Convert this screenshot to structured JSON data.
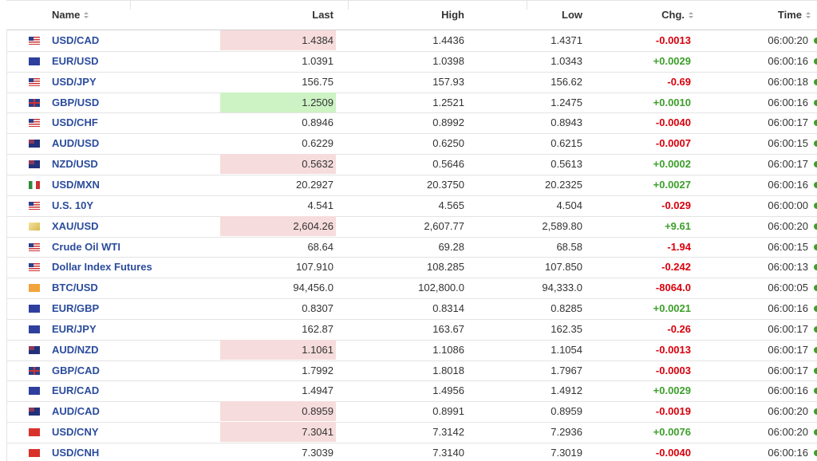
{
  "table": {
    "header": [
      "Name",
      "Last",
      "High",
      "Low",
      "Chg.",
      "Time"
    ],
    "rows": [
      [
        "USD/CAD",
        "1.4384",
        "1.4436",
        "1.4371",
        "-0.0013",
        "06:00:20"
      ],
      [
        "EUR/USD",
        "1.0391",
        "1.0398",
        "1.0343",
        "+0.0029",
        "06:00:16"
      ],
      [
        "USD/JPY",
        "156.75",
        "157.93",
        "156.62",
        "-0.69",
        "06:00:18"
      ],
      [
        "GBP/USD",
        "1.2509",
        "1.2521",
        "1.2475",
        "+0.0010",
        "06:00:16"
      ],
      [
        "USD/CHF",
        "0.8946",
        "0.8992",
        "0.8943",
        "-0.0040",
        "06:00:17"
      ],
      [
        "AUD/USD",
        "0.6229",
        "0.6250",
        "0.6215",
        "-0.0007",
        "06:00:15"
      ],
      [
        "NZD/USD",
        "0.5632",
        "0.5646",
        "0.5613",
        "+0.0002",
        "06:00:17"
      ],
      [
        "USD/MXN",
        "20.2927",
        "20.3750",
        "20.2325",
        "+0.0027",
        "06:00:16"
      ],
      [
        "U.S. 10Y",
        "4.541",
        "4.565",
        "4.504",
        "-0.029",
        "06:00:00"
      ],
      [
        "XAU/USD",
        "2,604.26",
        "2,607.77",
        "2,589.80",
        "+9.61",
        "06:00:20"
      ],
      [
        "Crude Oil WTI",
        "68.64",
        "69.28",
        "68.58",
        "-1.94",
        "06:00:15"
      ],
      [
        "Dollar Index Futures",
        "107.910",
        "108.285",
        "107.850",
        "-0.242",
        "06:00:13"
      ],
      [
        "BTC/USD",
        "94,456.0",
        "102,800.0",
        "94,333.0",
        "-8064.0",
        "06:00:05"
      ],
      [
        "EUR/GBP",
        "0.8307",
        "0.8314",
        "0.8285",
        "+0.0021",
        "06:00:16"
      ],
      [
        "EUR/JPY",
        "162.87",
        "163.67",
        "162.35",
        "-0.26",
        "06:00:17"
      ],
      [
        "AUD/NZD",
        "1.1061",
        "1.1086",
        "1.1054",
        "-0.0013",
        "06:00:17"
      ],
      [
        "GBP/CAD",
        "1.7992",
        "1.8018",
        "1.7967",
        "-0.0003",
        "06:00:17"
      ],
      [
        "EUR/CAD",
        "1.4947",
        "1.4956",
        "1.4912",
        "+0.0029",
        "06:00:16"
      ],
      [
        "AUD/CAD",
        "0.8959",
        "0.8991",
        "0.8959",
        "-0.0019",
        "06:00:20"
      ],
      [
        "USD/CNY",
        "7.3041",
        "7.3142",
        "7.2936",
        "+0.0076",
        "06:00:20"
      ],
      [
        "USD/CNH",
        "7.3039",
        "7.3140",
        "7.3019",
        "-0.0040",
        "06:00:16"
      ]
    ]
  }
}
